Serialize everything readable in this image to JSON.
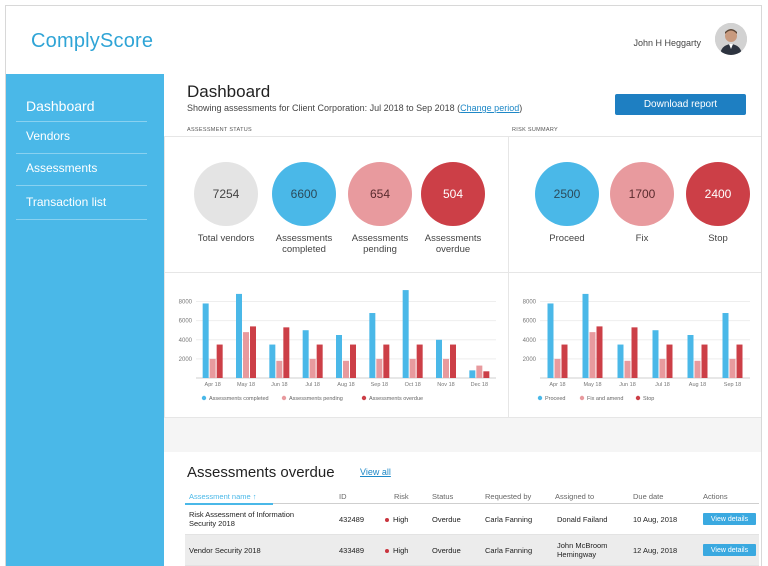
{
  "header": {
    "logo": "ComplyScore",
    "user_name": "John H Heggarty"
  },
  "sidebar": {
    "items": [
      {
        "label": "Dashboard"
      },
      {
        "label": "Vendors"
      },
      {
        "label": "Assessments"
      },
      {
        "label": "Transaction list"
      }
    ]
  },
  "main": {
    "title": "Dashboard",
    "subtitle": "Showing assessments for Client Corporation: Jul 2018 to Sep 2018 (",
    "change_period": "Change period",
    "subtitle_end": ")",
    "download_label": "Download report",
    "assessment_status_label": "ASSESSMENT STATUS",
    "risk_summary_label": "RISK SUMMARY"
  },
  "status_stats": [
    {
      "value": "7254",
      "label_1": "Total vendors",
      "label_2": "",
      "color": "#e4e4e4",
      "text_color": "#444"
    },
    {
      "value": "6600",
      "label_1": "Assessments",
      "label_2": "completed",
      "color": "#4ab8e8",
      "text_color": "#2b4a5a"
    },
    {
      "value": "654",
      "label_1": "Assessments",
      "label_2": "pending",
      "color": "#e89a9e",
      "text_color": "#5a2b2e"
    },
    {
      "value": "504",
      "label_1": "Assessments",
      "label_2": "overdue",
      "color": "#cc3f47",
      "text_color": "#ffffff"
    }
  ],
  "risk_stats": [
    {
      "value": "2500",
      "label_1": "Proceed",
      "color": "#4ab8e8",
      "text_color": "#2b4a5a"
    },
    {
      "value": "1700",
      "label_1": "Fix",
      "color": "#e89a9e",
      "text_color": "#5a2b2e"
    },
    {
      "value": "2400",
      "label_1": "Stop",
      "color": "#cc3f47",
      "text_color": "#ffffff"
    }
  ],
  "chart_data": [
    {
      "type": "bar",
      "categories": [
        "Apr 18",
        "May 18",
        "Jun 18",
        "Jul 18",
        "Aug 18",
        "Sep 18",
        "Oct 18",
        "Nov 18",
        "Dec 18"
      ],
      "ylim": [
        0,
        9000
      ],
      "yticks": [
        "8000",
        "6000",
        "4000",
        "2000"
      ],
      "grid": true,
      "legend_position": "bottom",
      "colors": [
        "#4ab8e8",
        "#e89a9e",
        "#cc3f47"
      ],
      "series": [
        {
          "name": "Assessments completed",
          "values": [
            7800,
            8800,
            3500,
            5000,
            4500,
            6800,
            9200,
            4000,
            800
          ]
        },
        {
          "name": "Assessments pending",
          "values": [
            2000,
            4800,
            1800,
            2000,
            1800,
            2000,
            2000,
            2000,
            1300
          ]
        },
        {
          "name": "Assessments overdue",
          "values": [
            3500,
            5400,
            5300,
            3500,
            3500,
            3500,
            3500,
            3500,
            700
          ]
        }
      ]
    },
    {
      "type": "bar",
      "categories": [
        "Apr 18",
        "May 18",
        "Jun 18",
        "Jul 18",
        "Aug 18",
        "Sep 18"
      ],
      "ylim": [
        0,
        9000
      ],
      "yticks": [
        "8000",
        "6000",
        "4000",
        "2000"
      ],
      "grid": true,
      "legend_position": "bottom",
      "colors": [
        "#4ab8e8",
        "#e89a9e",
        "#cc3f47"
      ],
      "series": [
        {
          "name": "Proceed",
          "values": [
            7800,
            8800,
            3500,
            5000,
            4500,
            6800
          ]
        },
        {
          "name": "Fix and amend",
          "values": [
            2000,
            4800,
            1800,
            2000,
            1800,
            2000
          ]
        },
        {
          "name": "Stop",
          "values": [
            3500,
            5400,
            5300,
            3500,
            3500,
            3500
          ]
        }
      ]
    }
  ],
  "overdue": {
    "title": "Assessments overdue",
    "view_all": "View all",
    "columns": [
      "Assessment name ↑",
      "ID",
      "Risk",
      "Status",
      "Requested by",
      "Assigned to",
      "Due date",
      "Actions"
    ],
    "rows": [
      {
        "name_1": "Risk Assessment of Information",
        "name_2": "Security 2018",
        "id": "432489",
        "risk": "High",
        "status": "Overdue",
        "requested_by": "Carla Fanning",
        "assigned_1": "Donald Failand",
        "assigned_2": "",
        "due_date": "10 Aug, 2018",
        "action": "View details"
      },
      {
        "name_1": "Vendor Security 2018",
        "name_2": "",
        "id": "433489",
        "risk": "High",
        "status": "Overdue",
        "requested_by": "Carla Fanning",
        "assigned_1": "John McBroom",
        "assigned_2": "Hemingway",
        "due_date": "12 Aug, 2018",
        "action": "View details"
      }
    ]
  }
}
